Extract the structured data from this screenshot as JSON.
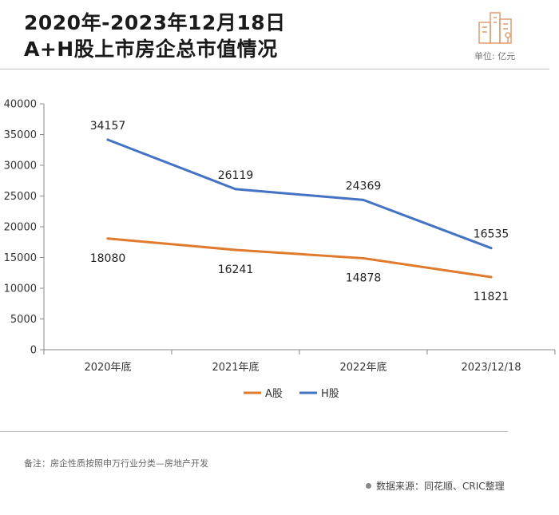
{
  "header": {
    "title_line1": "2020年-2023年12月18日",
    "title_line2": "A+H股上市房企总市值情况",
    "logo_icon": "buildings-icon",
    "unit": "单位: 亿元"
  },
  "footer": {
    "note": "备注：房企性质按照申万行业分类—房地产开发",
    "source": "数据来源：同花顺、CRIC整理"
  },
  "colors": {
    "a_share": "#e07b2d",
    "h_share": "#4472c4",
    "logo": "#e0a37a"
  },
  "chart_data": {
    "type": "line",
    "title": "2020年-2023年12月18日 A+H股上市房企总市值情况",
    "categories": [
      "2020年底",
      "2021年底",
      "2022年底",
      "2023/12/18"
    ],
    "series": [
      {
        "name": "H股",
        "values": [
          34157,
          26119,
          24369,
          16535
        ],
        "color": "#4472c4"
      },
      {
        "name": "A股",
        "values": [
          18080,
          16241,
          14878,
          11821
        ],
        "color": "#e07b2d"
      }
    ],
    "legend_order": [
      "A股",
      "H股"
    ],
    "legend_position": "bottom",
    "ylim": [
      0,
      40000
    ],
    "yticks": [
      0,
      5000,
      10000,
      15000,
      20000,
      25000,
      30000,
      35000,
      40000
    ],
    "ylabel": "",
    "xlabel": "",
    "grid": false
  }
}
